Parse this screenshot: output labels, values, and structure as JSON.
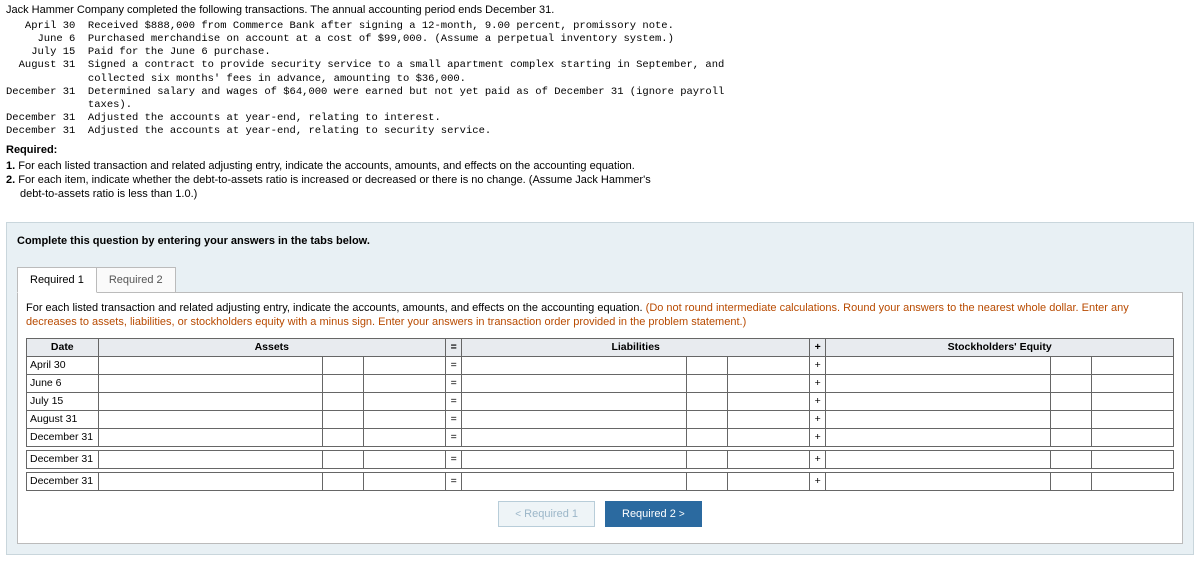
{
  "intro": {
    "title": "Jack Hammer Company completed the following transactions. The annual accounting period ends December 31.",
    "monoLines": [
      "   April 30  Received $888,000 from Commerce Bank after signing a 12-month, 9.00 percent, promissory note.",
      "     June 6  Purchased merchandise on account at a cost of $99,000. (Assume a perpetual inventory system.)",
      "    July 15  Paid for the June 6 purchase.",
      "  August 31  Signed a contract to provide security service to a small apartment complex starting in September, and",
      "             collected six months' fees in advance, amounting to $36,000.",
      "December 31  Determined salary and wages of $64,000 were earned but not yet paid as of December 31 (ignore payroll",
      "             taxes).",
      "December 31  Adjusted the accounts at year-end, relating to interest.",
      "December 31  Adjusted the accounts at year-end, relating to security service."
    ],
    "requiredLabel": "Required:",
    "req1_num": "1.",
    "req1_text": " For each listed transaction and related adjusting entry, indicate the accounts, amounts, and effects on the accounting equation.",
    "req2_num": "2.",
    "req2_text_a": " For each item, indicate whether the debt-to-assets ratio is increased or decreased or there is no change. (Assume Jack Hammer's",
    "req2_text_b": "debt-to-assets ratio is less than 1.0.)"
  },
  "promptBar": "Complete this question by entering your answers in the tabs below.",
  "tabs": {
    "t1": "Required 1",
    "t2": "Required 2"
  },
  "panel": {
    "instr_black": "For each listed transaction and related adjusting entry, indicate the accounts, amounts, and effects on the accounting equation. ",
    "instr_warn": "(Do not round intermediate calculations. Round your answers to the nearest whole dollar. Enter any decreases to assets, liabilities, or stockholders equity with a minus sign. Enter your answers in transaction order provided in the problem statement.)"
  },
  "table": {
    "headers": {
      "date": "Date",
      "assets": "Assets",
      "eq": "=",
      "liab": "Liabilities",
      "plus": "+",
      "se": "Stockholders' Equity"
    },
    "dates": [
      "April 30",
      "June 6",
      "July 15",
      "August 31",
      "December 31",
      "December 31",
      "December 31"
    ],
    "eqSym": "=",
    "plusSym": "+"
  },
  "nav": {
    "prev": "Required 1",
    "next": "Required 2",
    "lchev": "<",
    "rchev": ">"
  },
  "colors": {
    "panelBg": "#e8f0f4",
    "warn": "#b84a00",
    "navBlue": "#2b6aa0"
  }
}
